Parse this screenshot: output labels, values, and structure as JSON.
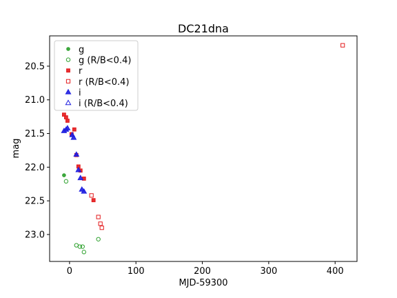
{
  "chart_data": {
    "type": "scatter",
    "title": "DC21dna",
    "xlabel": "MJD-59300",
    "ylabel": "mag",
    "xlim": [
      -30,
      433
    ],
    "ylim": [
      23.4,
      20.05
    ],
    "y_inverted": true,
    "grid": false,
    "legend_position": "top-left",
    "x_ticks": [
      0,
      100,
      200,
      300,
      400
    ],
    "x_tick_labels": [
      "0",
      "100",
      "200",
      "300",
      "400"
    ],
    "y_ticks": [
      20.5,
      21.0,
      21.5,
      22.0,
      22.5,
      23.0
    ],
    "y_tick_labels": [
      "20.5",
      "21.0",
      "21.5",
      "22.0",
      "22.5",
      "23.0"
    ],
    "series": [
      {
        "name": "g",
        "marker": "circle",
        "filled": true,
        "color": "#2ca02c",
        "points": [
          {
            "x": -8.3,
            "y": 22.12
          }
        ]
      },
      {
        "name": "g (R/B<0.4)",
        "marker": "circle",
        "filled": false,
        "color": "#2ca02c",
        "points": [
          {
            "x": -5.2,
            "y": 22.21
          },
          {
            "x": 10.3,
            "y": 23.16
          },
          {
            "x": 15.5,
            "y": 23.18
          },
          {
            "x": 19.6,
            "y": 23.18
          },
          {
            "x": 21.7,
            "y": 23.26
          },
          {
            "x": 43.4,
            "y": 23.07
          }
        ]
      },
      {
        "name": "r",
        "marker": "square",
        "filled": true,
        "color": "#e31a1c",
        "points": [
          {
            "x": -8.3,
            "y": 21.22
          },
          {
            "x": -5.2,
            "y": 21.26
          },
          {
            "x": -3.1,
            "y": 21.31
          },
          {
            "x": 3.1,
            "y": 21.51
          },
          {
            "x": 7.2,
            "y": 21.44
          },
          {
            "x": 10.3,
            "y": 21.82
          },
          {
            "x": 13.4,
            "y": 21.99
          },
          {
            "x": 16.5,
            "y": 22.05
          },
          {
            "x": 21.7,
            "y": 22.17
          },
          {
            "x": 36.1,
            "y": 22.49
          }
        ]
      },
      {
        "name": "r (R/B<0.4)",
        "marker": "square",
        "filled": false,
        "color": "#e31a1c",
        "points": [
          {
            "x": 33.0,
            "y": 22.42
          },
          {
            "x": 43.4,
            "y": 22.74
          },
          {
            "x": 46.5,
            "y": 22.84
          },
          {
            "x": 48.6,
            "y": 22.9
          },
          {
            "x": 411.4,
            "y": 20.19
          }
        ]
      },
      {
        "name": "i",
        "marker": "triangle",
        "filled": true,
        "color": "#1f1fe0",
        "points": [
          {
            "x": -8.3,
            "y": 21.46
          },
          {
            "x": -5.2,
            "y": 21.44
          },
          {
            "x": -3.1,
            "y": 21.42
          },
          {
            "x": 4.1,
            "y": 21.52
          },
          {
            "x": 6.2,
            "y": 21.56
          },
          {
            "x": 10.3,
            "y": 21.81
          },
          {
            "x": 13.4,
            "y": 22.04
          },
          {
            "x": 16.5,
            "y": 22.16
          },
          {
            "x": 18.6,
            "y": 22.33
          },
          {
            "x": 21.7,
            "y": 22.36
          }
        ]
      },
      {
        "name": "i (R/B<0.4)",
        "marker": "triangle",
        "filled": false,
        "color": "#1f1fe0",
        "points": []
      }
    ]
  }
}
